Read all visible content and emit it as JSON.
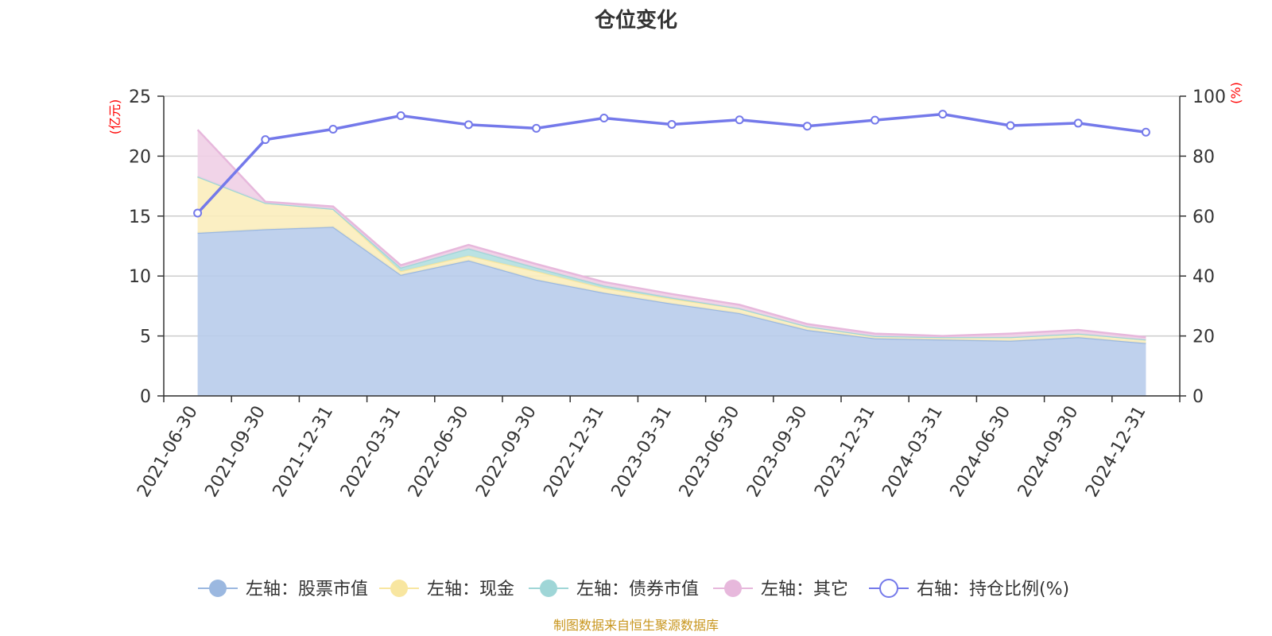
{
  "chart_data": {
    "type": "area",
    "title": "仓位变化",
    "left_axis_unit": "(亿元)",
    "right_axis_unit": "(%)",
    "categories": [
      "2021-06-30",
      "2021-09-30",
      "2021-12-31",
      "2022-03-31",
      "2022-06-30",
      "2022-09-30",
      "2022-12-31",
      "2023-03-31",
      "2023-06-30",
      "2023-09-30",
      "2023-12-31",
      "2024-03-31",
      "2024-06-30",
      "2024-09-30",
      "2024-12-31"
    ],
    "ylim_left": [
      0,
      25
    ],
    "yticks_left": [
      "0",
      "5",
      "10",
      "15",
      "20",
      "25"
    ],
    "ylim_right": [
      0,
      100
    ],
    "yticks_right": [
      "0",
      "20",
      "40",
      "60",
      "80",
      "100"
    ],
    "stacked": true,
    "grid": true,
    "legend_position": "bottom",
    "series": [
      {
        "name": "左轴：股票市值",
        "axis": "left",
        "color": "#9bb8e0",
        "fill": "#b8cceb",
        "values": [
          13.6,
          13.9,
          14.1,
          10.1,
          11.3,
          9.7,
          8.6,
          7.7,
          6.9,
          5.5,
          4.8,
          4.7,
          4.6,
          4.9,
          4.4
        ]
      },
      {
        "name": "左轴：现金",
        "axis": "left",
        "color": "#f8e6a0",
        "fill": "#fbedbd",
        "values": [
          4.7,
          2.2,
          1.5,
          0.3,
          0.4,
          0.7,
          0.4,
          0.4,
          0.4,
          0.3,
          0.2,
          0.2,
          0.3,
          0.3,
          0.3
        ]
      },
      {
        "name": "左轴：债券市值",
        "axis": "left",
        "color": "#9fd6d7",
        "fill": "#b3dfe0",
        "values": [
          0.0,
          0.0,
          0.0,
          0.3,
          0.6,
          0.3,
          0.2,
          0.1,
          0.0,
          0.0,
          0.0,
          0.0,
          0.0,
          0.0,
          0.0
        ]
      },
      {
        "name": "左轴：其它",
        "axis": "left",
        "color": "#e7b8dc",
        "fill": "#efcfe6",
        "values": [
          3.9,
          0.1,
          0.2,
          0.2,
          0.3,
          0.3,
          0.3,
          0.3,
          0.3,
          0.2,
          0.2,
          0.1,
          0.3,
          0.3,
          0.2
        ]
      },
      {
        "name": "右轴：持仓比例(%)",
        "axis": "right",
        "color": "#7479ea",
        "values": [
          61,
          85.5,
          89,
          93.5,
          90.5,
          89.3,
          92.7,
          90.6,
          92.1,
          90,
          92,
          94,
          90.2,
          91,
          88
        ]
      }
    ]
  },
  "source_note": "制图数据来自恒生聚源数据库"
}
